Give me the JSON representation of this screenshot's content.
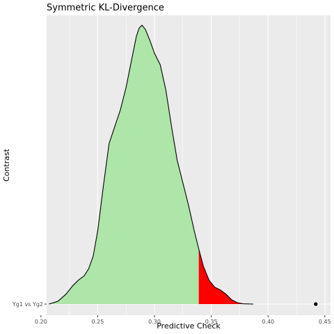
{
  "chart_data": {
    "type": "area",
    "title": "Symmetric KL-Divergence",
    "xlabel": "Predictive Check",
    "ylabel": "Contrast",
    "xlim": [
      0.205,
      0.455
    ],
    "x_ticks": [
      0.2,
      0.25,
      0.3,
      0.35,
      0.4,
      0.45
    ],
    "x_tick_labels": [
      "0.20",
      "0.25",
      "0.30",
      "0.35",
      "0.40",
      "0.45"
    ],
    "categories": [
      "Yg1 vs Yg2"
    ],
    "ylim": [
      0,
      1.03
    ],
    "grid": true,
    "density": {
      "x": [
        0.207,
        0.215,
        0.222,
        0.228,
        0.233,
        0.238,
        0.242,
        0.246,
        0.25,
        0.255,
        0.26,
        0.265,
        0.27,
        0.275,
        0.28,
        0.284,
        0.2865,
        0.289,
        0.292,
        0.296,
        0.3,
        0.305,
        0.31,
        0.315,
        0.32,
        0.325,
        0.33,
        0.335,
        0.339,
        0.343,
        0.348,
        0.353,
        0.358,
        0.363,
        0.368,
        0.373,
        0.378,
        0.387
      ],
      "y": [
        0.0,
        0.01,
        0.035,
        0.065,
        0.085,
        0.1,
        0.125,
        0.17,
        0.26,
        0.42,
        0.57,
        0.63,
        0.69,
        0.77,
        0.87,
        0.95,
        0.98,
        0.99,
        0.975,
        0.935,
        0.89,
        0.85,
        0.76,
        0.63,
        0.51,
        0.43,
        0.35,
        0.26,
        0.195,
        0.135,
        0.085,
        0.06,
        0.05,
        0.035,
        0.015,
        0.005,
        0.001,
        0.0
      ]
    },
    "highlight_from_x": 0.339,
    "observed": {
      "x": 0.442
    },
    "colors": {
      "fill": "#aee5a9",
      "tail": "#ff0000",
      "panel": "#ebebeb",
      "grid": "#ffffff",
      "line": "#000000",
      "point": "#000000",
      "text": "#000000",
      "tick_text": "#4d4d4d",
      "tick": "#333333"
    }
  }
}
